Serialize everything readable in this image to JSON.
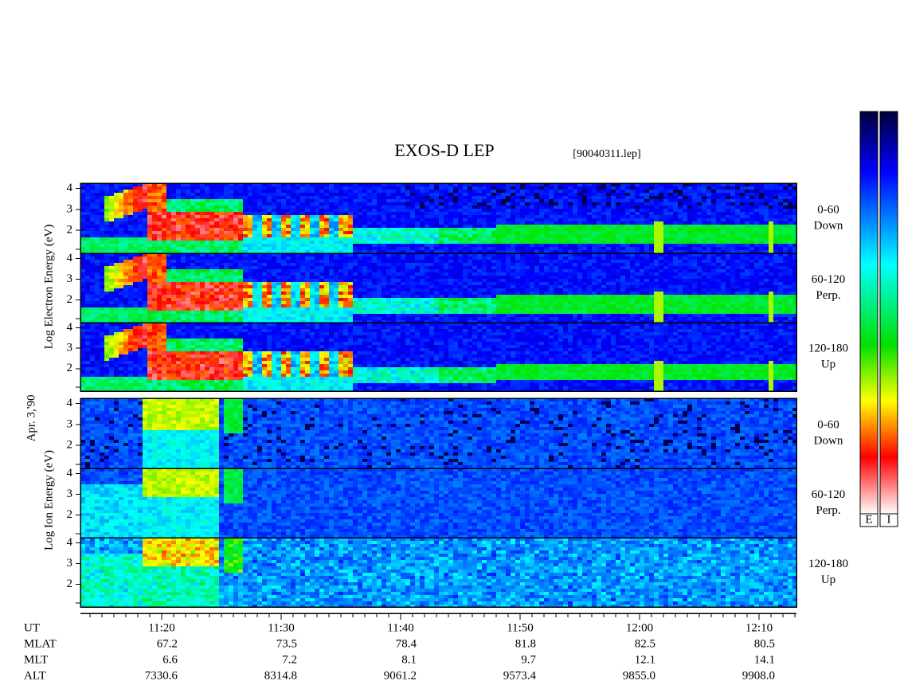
{
  "title": "EXOS-D LEP",
  "file": "[90040311.lep]",
  "date": "Apr. 3,'90",
  "electron_label": "Log Electron Energy (eV)",
  "ion_label": "Log Ion Energy (eV)",
  "panel_labels": [
    [
      "0-60",
      "Down"
    ],
    [
      "60-120",
      "Perp."
    ],
    [
      "120-180",
      "Up"
    ]
  ],
  "ylim": [
    0.9,
    4.25
  ],
  "yticks": [
    2,
    3,
    4
  ],
  "ephemeris": [
    {
      "label": "UT",
      "values": [
        "11:20",
        "11:30",
        "11:40",
        "11:50",
        "12:00",
        "12:10"
      ]
    },
    {
      "label": "MLAT",
      "values": [
        "67.2",
        "73.5",
        "78.4",
        "81.8",
        "82.5",
        "80.5"
      ]
    },
    {
      "label": "MLT",
      "values": [
        "6.6",
        "7.2",
        "8.1",
        "9.7",
        "12.1",
        "14.1"
      ]
    },
    {
      "label": "ALT",
      "values": [
        "7330.6",
        "8314.8",
        "9061.2",
        "9573.4",
        "9855.0",
        "9908.0"
      ]
    }
  ],
  "colorbar_labels": [
    "E",
    "I"
  ]
}
